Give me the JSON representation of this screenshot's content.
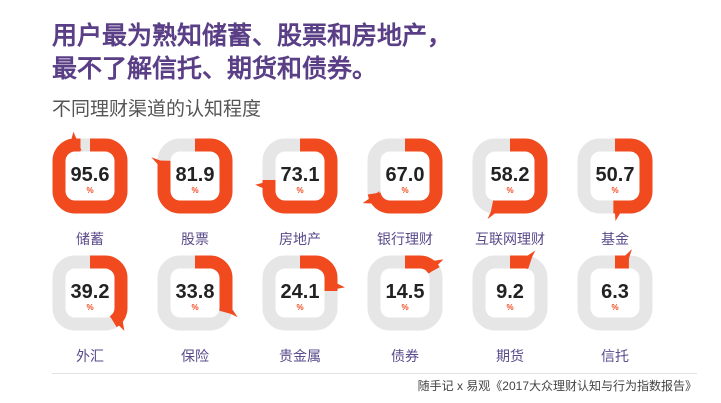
{
  "headline": {
    "line1": "用户最为熟知储蓄、股票和房地产，",
    "line2": "最不了解信托、期货和债券。"
  },
  "source": "随手记 x 易观《2017大众理财认知与行为指数报告》",
  "colors": {
    "accent": "#f04a1e",
    "track": "#e6e6e6",
    "title": "#5a3f86",
    "label": "#5a4a8a"
  },
  "chart_data": {
    "type": "pie",
    "title": "不同理财渠道的认知程度",
    "unit": "%",
    "categories": [
      "储蓄",
      "股票",
      "房地产",
      "银行理财",
      "互联网理财",
      "基金",
      "外汇",
      "保险",
      "贵金属",
      "债券",
      "期货",
      "信托"
    ],
    "values": [
      95.6,
      81.9,
      73.1,
      67.0,
      58.2,
      50.7,
      39.2,
      33.8,
      24.1,
      14.5,
      9.2,
      6.3
    ],
    "value_labels": [
      "95.6",
      "81.9",
      "73.1",
      "67.0",
      "58.2",
      "50.7",
      "39.2",
      "33.8",
      "24.1",
      "14.5",
      "9.2",
      "6.3"
    ],
    "max": 100,
    "grid": false,
    "legend": "none"
  }
}
